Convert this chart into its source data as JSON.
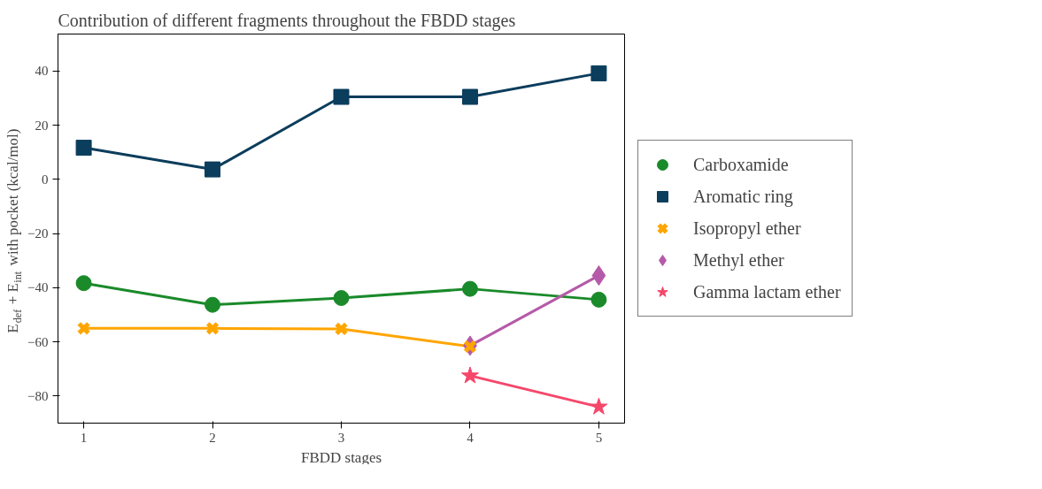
{
  "chart_data": {
    "type": "line",
    "title": "Contribution of different fragments throughout the FBDD stages",
    "xlabel": "FBDD stages",
    "ylabel": "E$_{def}$ + E$_{int}$ with pocket (kcal/mol)",
    "xlim": [
      0.8,
      5.2
    ],
    "xticks": [
      1,
      2,
      3,
      4,
      5
    ],
    "ylim": [
      -90,
      53.7
    ],
    "yticks": [
      -80,
      -60,
      -40,
      -20,
      0,
      20,
      40
    ],
    "grid": false,
    "legend": "right",
    "line_style": "solid",
    "series": [
      {
        "name": "Carboxamide",
        "color": "#1a8a2a",
        "marker": "circle",
        "x": [
          1,
          2,
          3,
          4,
          5
        ],
        "values": [
          -38.3,
          -46.3,
          -43.8,
          -40.4,
          -44.4
        ]
      },
      {
        "name": "Aromatic ring",
        "color": "#0b3d5c",
        "marker": "square",
        "x": [
          1,
          2,
          3,
          4,
          5
        ],
        "values": [
          11.7,
          3.7,
          30.5,
          30.5,
          39.2
        ]
      },
      {
        "name": "Isopropyl ether",
        "color": "#ffa500",
        "marker": "cross",
        "x": [
          1,
          2,
          3,
          4
        ],
        "values": [
          -55,
          -55,
          -55.2,
          -61.7
        ]
      },
      {
        "name": "Methyl ether",
        "color": "#b55aa8",
        "marker": "diamond",
        "x": [
          4,
          5
        ],
        "values": [
          -61.4,
          -35.5
        ]
      },
      {
        "name": "Gamma lactam ether",
        "color": "#f5476a",
        "marker": "star",
        "x": [
          4,
          5
        ],
        "values": [
          -72.5,
          -84
        ]
      }
    ]
  }
}
